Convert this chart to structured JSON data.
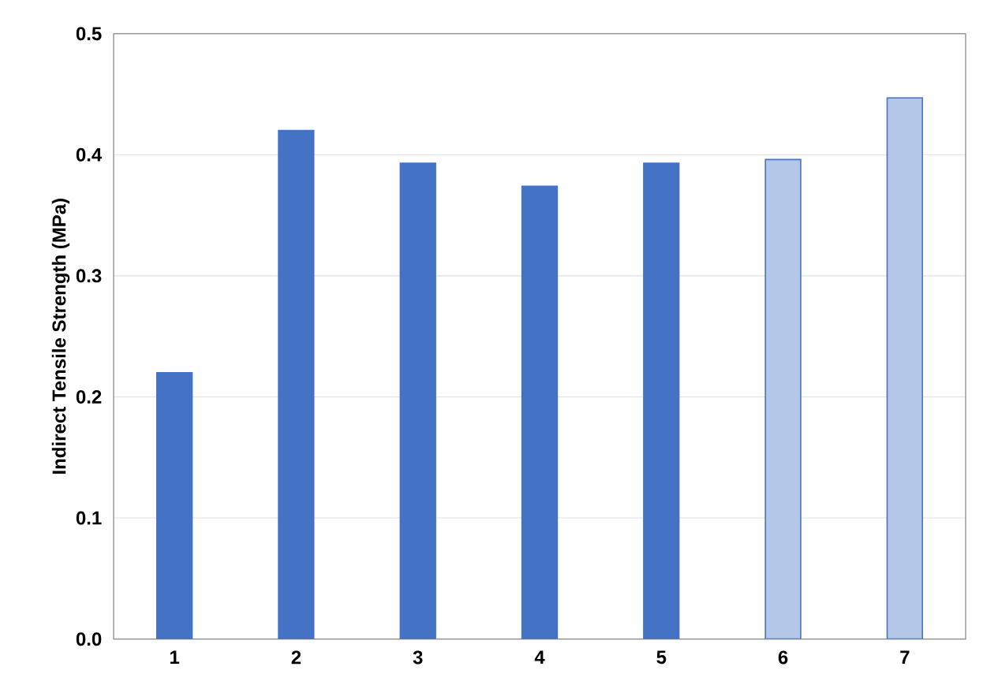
{
  "chart_data": {
    "type": "bar",
    "ylabel": "Indirect Tensile Strength (MPa)",
    "categories": [
      "1",
      "2",
      "3",
      "4",
      "5",
      "6",
      "7"
    ],
    "values": [
      0.22,
      0.42,
      0.393,
      0.374,
      0.393,
      0.396,
      0.447
    ],
    "colors": [
      "#4472c4",
      "#4472c4",
      "#4472c4",
      "#4472c4",
      "#4472c4",
      "#b4c7e7",
      "#b4c7e7"
    ],
    "ylim": [
      0,
      0.5
    ],
    "yticks": [
      {
        "value": 0,
        "label": "0.0"
      },
      0.1,
      0.2,
      0.3,
      0.4,
      0.5
    ],
    "grid": "y"
  }
}
